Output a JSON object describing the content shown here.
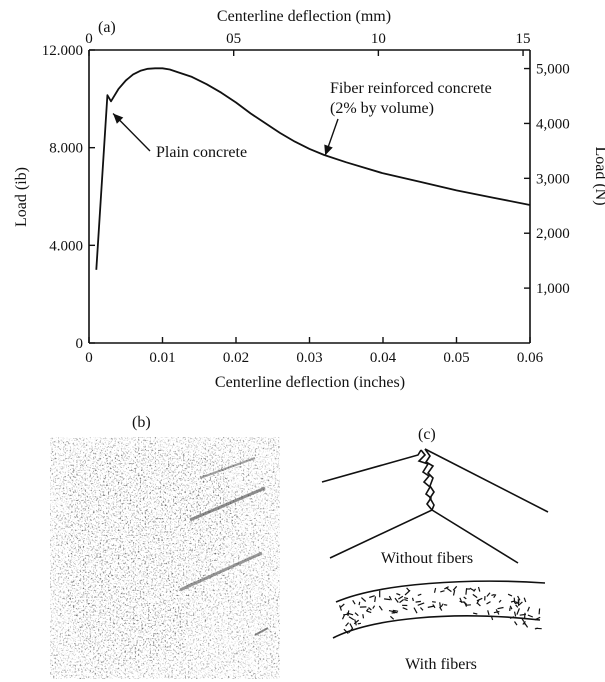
{
  "chart_data": {
    "type": "line",
    "panel_labels": {
      "a": "(a)",
      "b": "(b)",
      "c": "(c)"
    },
    "x_bottom": {
      "label": "Centerline deflection (inches)",
      "range": [
        0,
        0.06
      ],
      "ticks": [
        "0",
        "0.01",
        "0.02",
        "0.03",
        "0.04",
        "0.05",
        "0.06"
      ],
      "tick_values": [
        0,
        0.01,
        0.02,
        0.03,
        0.04,
        0.05,
        0.06
      ]
    },
    "x_top": {
      "label": "Centerline deflection (mm)",
      "range": [
        0,
        1.524
      ],
      "ticks": [
        "0",
        "05",
        "10",
        "15"
      ],
      "tick_values": [
        0,
        0.5,
        1.0,
        1.5
      ]
    },
    "y_left": {
      "label": "Load (ib)",
      "range": [
        0,
        12000
      ],
      "ticks": [
        "0",
        "4.000",
        "8.000",
        "12.000"
      ],
      "tick_values": [
        0,
        4000,
        8000,
        12000
      ]
    },
    "y_right": {
      "label": "Load (N)",
      "range": [
        0,
        5338
      ],
      "ticks": [
        "1,000",
        "2,000",
        "3,000",
        "4,000",
        "5,000"
      ],
      "tick_values": [
        1000,
        2000,
        3000,
        4000,
        5000
      ]
    },
    "series": [
      {
        "name": "Fiber reinforced concrete (2% by volume)",
        "x": [
          0.001,
          0.0025,
          0.003,
          0.004,
          0.005,
          0.006,
          0.007,
          0.008,
          0.009,
          0.01,
          0.011,
          0.012,
          0.014,
          0.016,
          0.018,
          0.02,
          0.022,
          0.024,
          0.026,
          0.028,
          0.03,
          0.032,
          0.035,
          0.04,
          0.045,
          0.05,
          0.055,
          0.06
        ],
        "y": [
          3000,
          10150,
          9900,
          10400,
          10750,
          11000,
          11150,
          11230,
          11250,
          11250,
          11200,
          11100,
          10900,
          10600,
          10250,
          9850,
          9400,
          9000,
          8600,
          8250,
          7950,
          7700,
          7400,
          6950,
          6600,
          6250,
          5950,
          5650
        ]
      }
    ],
    "annotations": [
      {
        "text": "Plain concrete",
        "x": 0.003,
        "y": 9400
      },
      {
        "text": "Fiber reinforced concrete",
        "x": 0.032,
        "y": 7600
      },
      {
        "text": "(2% by volume)",
        "x": 0.032,
        "y": 7600
      }
    ],
    "captions": {
      "without_fibers": "Without fibers",
      "with_fibers": "With fibers"
    },
    "grid": false,
    "legend": "none"
  }
}
